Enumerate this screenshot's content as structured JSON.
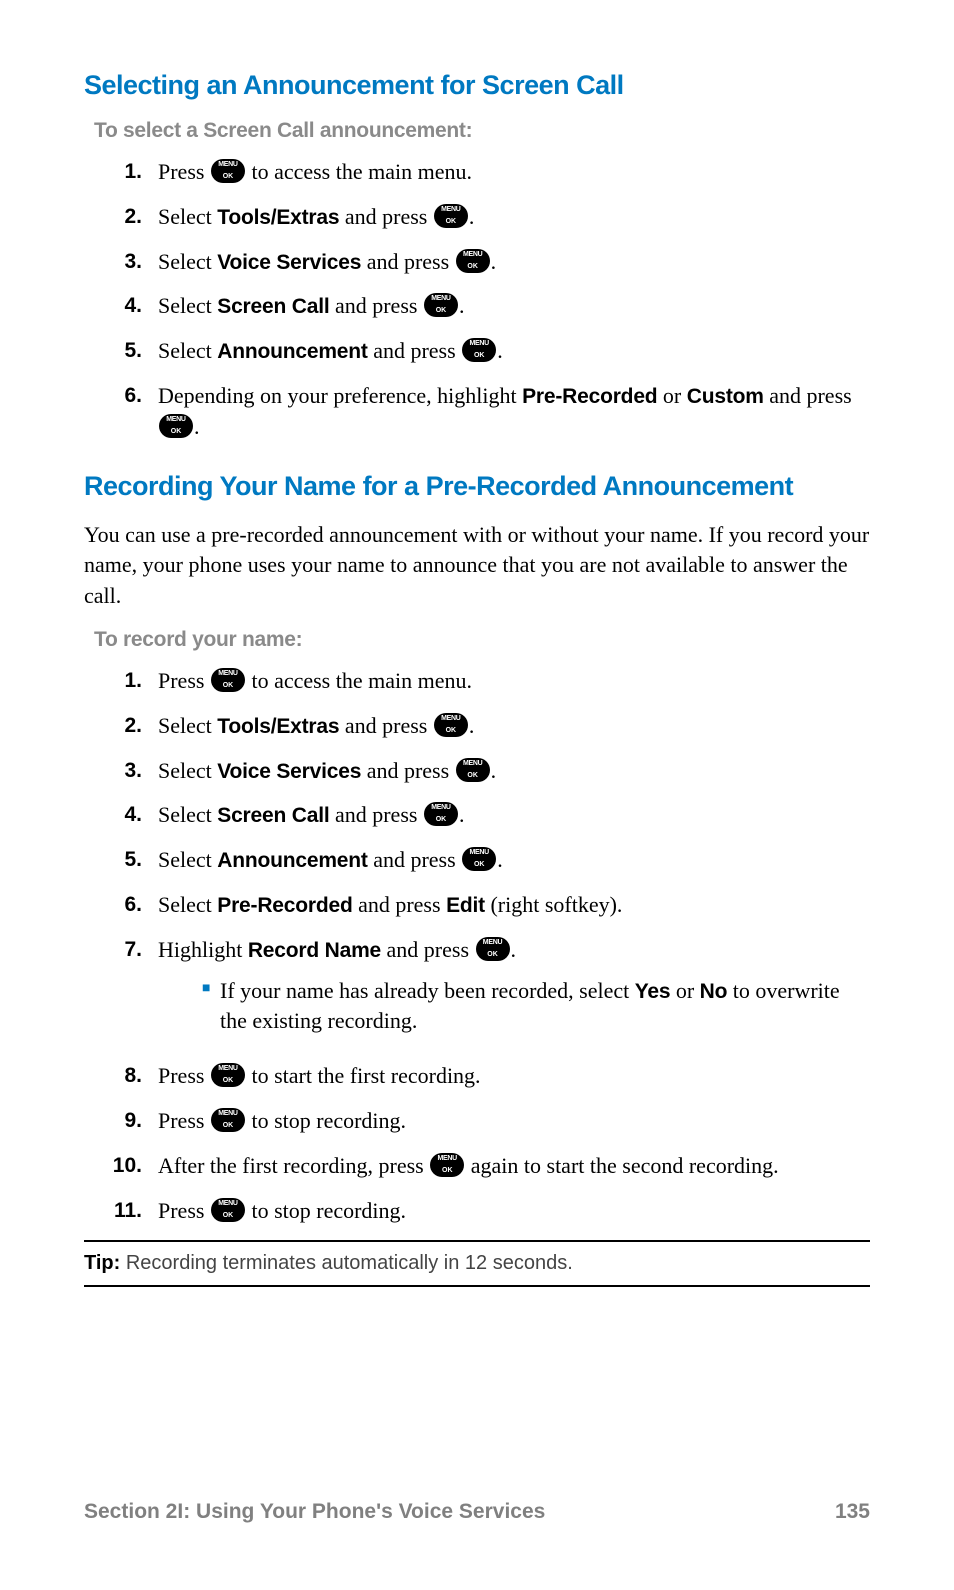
{
  "colors": {
    "heading": "#0079c1",
    "subheading_gray": "#8a8a8a",
    "footer_gray": "#808080",
    "rule": "#000000",
    "bullet": "#0079c1",
    "body_text": "#000000",
    "background": "#ffffff"
  },
  "fonts": {
    "heading_family": "Arial",
    "heading_size_pt": 20,
    "body_family": "Georgia",
    "body_size_pt": 16,
    "subheading_size_pt": 16
  },
  "section1": {
    "heading": "Selecting an Announcement for Screen Call",
    "subheading": "To select a Screen Call announcement:",
    "steps": [
      {
        "num": "1.",
        "pre": "Press ",
        "post": " to access the main menu.",
        "icons": [
          "menuok"
        ],
        "bolds": []
      },
      {
        "num": "2.",
        "pre": "Select ",
        "bold1": "Tools/Extras",
        "mid": " and press ",
        "post": ".",
        "icons": [
          "menuok"
        ]
      },
      {
        "num": "3.",
        "pre": "Select ",
        "bold1": "Voice Services",
        "mid": " and press ",
        "post": ".",
        "icons": [
          "menuok"
        ]
      },
      {
        "num": "4.",
        "pre": "Select ",
        "bold1": "Screen Call",
        "mid": " and press ",
        "post": ".",
        "icons": [
          "menuok"
        ]
      },
      {
        "num": "5.",
        "pre": "Select ",
        "bold1": "Announcement",
        "mid": " and press ",
        "post": ".",
        "icons": [
          "menuok"
        ]
      },
      {
        "num": "6.",
        "pre": "Depending on your preference, highlight ",
        "bold1": "Pre-Recorded",
        "mid": " or ",
        "bold2": "Custom",
        "mid2": " and press ",
        "post": ".",
        "icons": [
          "menuok"
        ]
      }
    ]
  },
  "section2": {
    "heading": "Recording Your Name for a Pre-Recorded Announcement",
    "intro": "You can use a pre-recorded announcement with or without your name. If you record your name, your phone uses your name to announce that you are not available to answer the call.",
    "subheading": "To record your name:",
    "steps": [
      {
        "num": "1.",
        "pre": "Press ",
        "post": " to access the main menu.",
        "icons": [
          "menuok"
        ]
      },
      {
        "num": "2.",
        "pre": "Select ",
        "bold1": "Tools/Extras",
        "mid": " and press ",
        "post": ".",
        "icons": [
          "menuok"
        ]
      },
      {
        "num": "3.",
        "pre": "Select ",
        "bold1": "Voice Services",
        "mid": " and press ",
        "post": ".",
        "icons": [
          "menuok"
        ]
      },
      {
        "num": "4.",
        "pre": "Select ",
        "bold1": "Screen Call",
        "mid": " and press ",
        "post": ".",
        "icons": [
          "menuok"
        ]
      },
      {
        "num": "5.",
        "pre": "Select ",
        "bold1": "Announcement",
        "mid": " and press ",
        "post": ".",
        "icons": [
          "menuok"
        ]
      },
      {
        "num": "6.",
        "pre": "Select ",
        "bold1": "Pre-Recorded",
        "mid": " and press ",
        "bold2": "Edit",
        "mid2": " (right softkey).",
        "icons": []
      },
      {
        "num": "7.",
        "pre": "Highlight ",
        "bold1": "Record Name",
        "mid": " and press ",
        "post": ".",
        "icons": [
          "menuok"
        ],
        "sub": [
          {
            "pre": "If your name has already been recorded, select ",
            "bold1": "Yes",
            "mid": " or ",
            "bold2": "No",
            "mid2": " to overwrite the existing recording."
          }
        ]
      },
      {
        "num": "8.",
        "pre": "Press ",
        "post": " to start the first recording.",
        "icons": [
          "menuok"
        ]
      },
      {
        "num": "9.",
        "pre": "Press ",
        "post": " to stop recording.",
        "icons": [
          "menuok"
        ]
      },
      {
        "num": "10.",
        "pre": "After the first recording, press ",
        "post": " again to start the second recording.",
        "icons": [
          "menuok"
        ]
      },
      {
        "num": "11.",
        "pre": "Press ",
        "post": " to stop recording.",
        "icons": [
          "menuok"
        ]
      }
    ]
  },
  "tip": {
    "label": "Tip:",
    "text": " Recording terminates automatically in 12 seconds."
  },
  "footer": {
    "section": "Section 2I: Using Your Phone's Voice Services",
    "page": "135"
  }
}
